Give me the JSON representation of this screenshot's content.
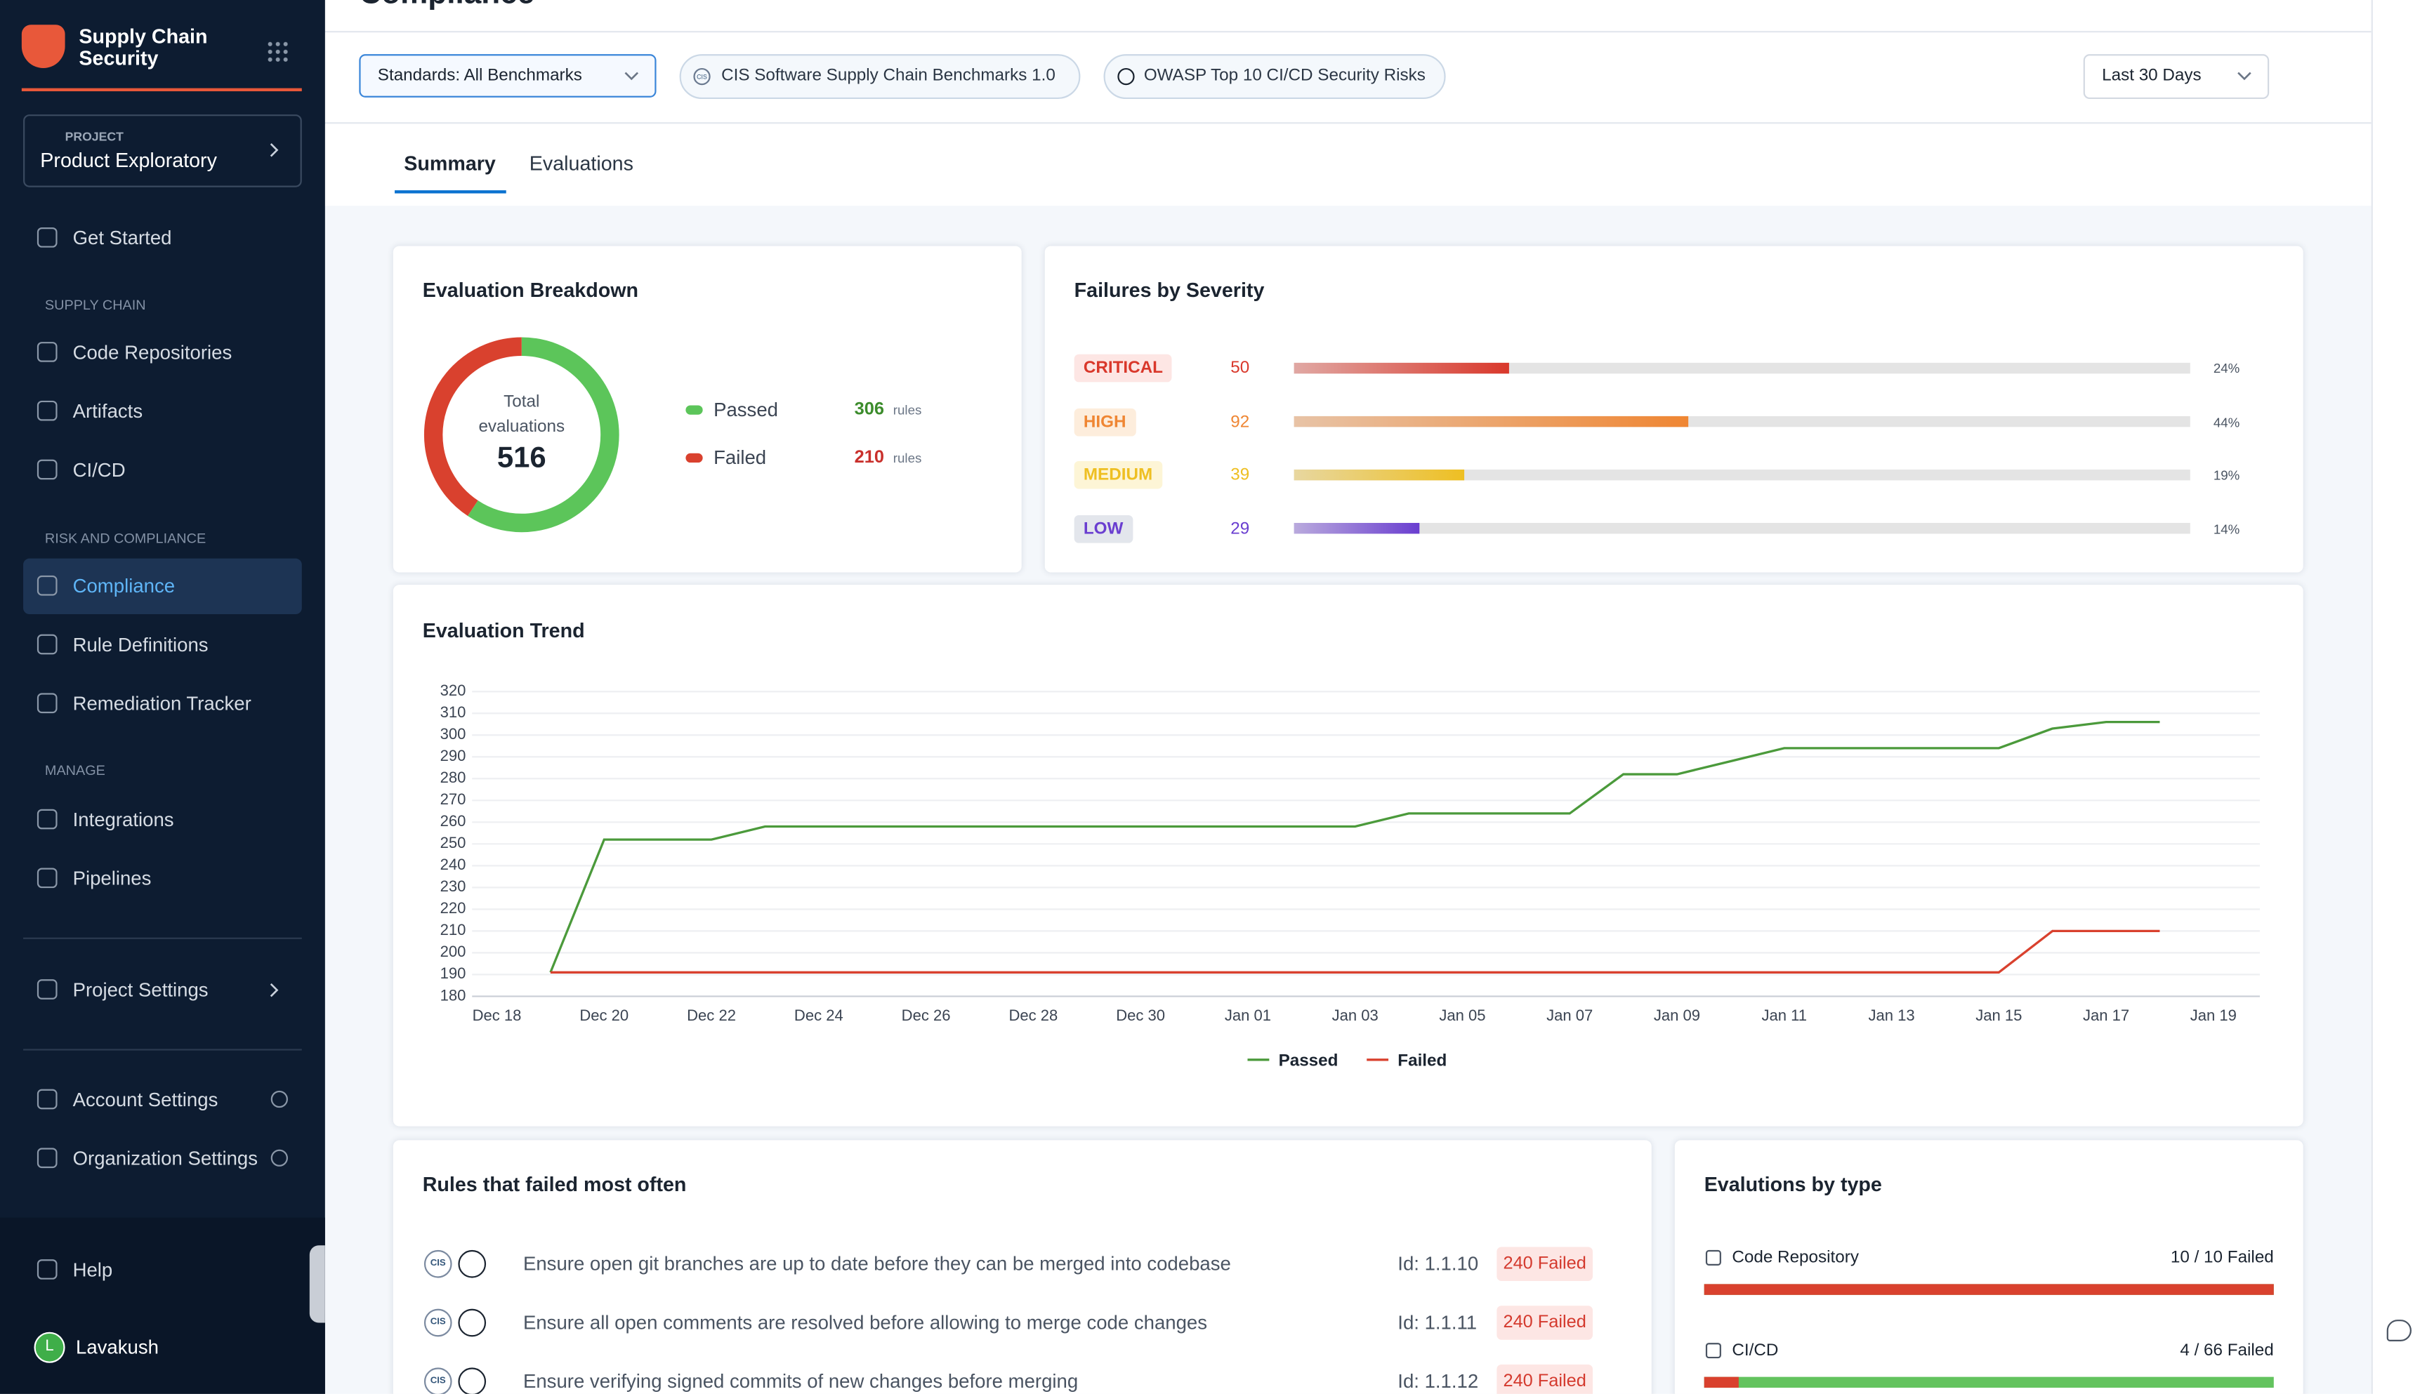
{
  "sidebar": {
    "brand": "Supply Chain Security",
    "project": {
      "label": "PROJECT",
      "name": "Product Exploratory"
    },
    "get_started": "Get Started",
    "sections": [
      {
        "title": "SUPPLY CHAIN",
        "items": [
          "Code Repositories",
          "Artifacts",
          "CI/CD"
        ]
      },
      {
        "title": "RISK AND COMPLIANCE",
        "items": [
          "Compliance",
          "Rule Definitions",
          "Remediation Tracker"
        ]
      },
      {
        "title": "MANAGE",
        "items": [
          "Integrations",
          "Pipelines"
        ]
      }
    ],
    "project_settings": "Project Settings",
    "account_settings": "Account Settings",
    "organization_settings": "Organization Settings",
    "help": "Help",
    "user": {
      "initial": "L",
      "name": "Lavakush"
    }
  },
  "page_title": "Compliance",
  "filters": {
    "standards": "Standards: All Benchmarks",
    "cis": "CIS Software Supply Chain Benchmarks 1.0",
    "cis_icon": "CIS",
    "owasp": "OWASP Top 10 CI/CD Security Risks",
    "range": "Last 30 Days"
  },
  "tabs": [
    "Summary",
    "Evaluations"
  ],
  "breakdown": {
    "title": "Evaluation Breakdown",
    "center_label": "Total evaluations",
    "total": 516,
    "items": [
      {
        "label": "Passed",
        "value": 306,
        "unit": "rules",
        "color": "#5cc55a"
      },
      {
        "label": "Failed",
        "value": 210,
        "unit": "rules",
        "color": "#d9412e"
      }
    ]
  },
  "severity": {
    "title": "Failures by Severity",
    "rows": [
      {
        "label": "CRITICAL",
        "count": 50,
        "percent": 24,
        "percent_label": "24%",
        "color": "#d9382b"
      },
      {
        "label": "HIGH",
        "count": 92,
        "percent": 44,
        "percent_label": "44%",
        "color": "#ef8633"
      },
      {
        "label": "MEDIUM",
        "count": 39,
        "percent": 19,
        "percent_label": "19%",
        "color": "#eebf22"
      },
      {
        "label": "LOW",
        "count": 29,
        "percent": 14,
        "percent_label": "14%",
        "color": "#6a3ed0"
      }
    ]
  },
  "trend_chart": {
    "type": "line",
    "title": "Evaluation Trend",
    "categories": [
      "Dec 18",
      null,
      "Dec 20",
      null,
      "Dec 22",
      null,
      "Dec 24",
      null,
      "Dec 26",
      null,
      "Dec 28",
      null,
      "Dec 30",
      null,
      "Jan 01",
      null,
      "Jan 03",
      null,
      "Jan 05",
      null,
      "Jan 07",
      null,
      "Jan 09",
      null,
      "Jan 11",
      null,
      "Jan 13",
      null,
      "Jan 15",
      null,
      "Jan 17",
      null,
      "Jan 19"
    ],
    "series": [
      {
        "name": "Passed",
        "color": "#4b9a3b",
        "values": [
          null,
          191,
          252,
          252,
          252,
          258,
          258,
          258,
          258,
          258,
          258,
          258,
          258,
          258,
          258,
          258,
          258,
          264,
          264,
          264,
          264,
          282,
          282,
          288,
          294,
          294,
          294,
          294,
          294,
          303,
          306,
          306,
          null
        ]
      },
      {
        "name": "Failed",
        "color": "#d9412e",
        "values": [
          null,
          191,
          191,
          191,
          191,
          191,
          191,
          191,
          191,
          191,
          191,
          191,
          191,
          191,
          191,
          191,
          191,
          191,
          191,
          191,
          191,
          191,
          191,
          191,
          191,
          191,
          191,
          191,
          191,
          210,
          210,
          210,
          null
        ]
      }
    ],
    "ylim": [
      180,
      320
    ],
    "yticks": [
      180,
      190,
      200,
      210,
      220,
      230,
      240,
      250,
      260,
      270,
      280,
      290,
      300,
      310,
      320
    ],
    "grid": true
  },
  "rules": {
    "title": "Rules that failed most often",
    "icon_label": "CIS",
    "rows": [
      {
        "text": "Ensure open git branches are up to date before they can be merged into codebase",
        "id": "Id: 1.1.10",
        "status": "240 Failed"
      },
      {
        "text": "Ensure all open comments are resolved before allowing to merge code changes",
        "id": "Id: 1.1.11",
        "status": "240 Failed"
      },
      {
        "text": "Ensure verifying signed commits of new changes before merging",
        "id": "Id: 1.1.12",
        "status": "240 Failed"
      }
    ]
  },
  "by_type": {
    "title": "Evalutions by type",
    "rows": [
      {
        "label": "Code Repository",
        "failed": 10,
        "total": 10,
        "status": "10 / 10 Failed"
      },
      {
        "label": "CI/CD",
        "failed": 4,
        "total": 66,
        "status": "4 / 66 Failed"
      }
    ]
  }
}
